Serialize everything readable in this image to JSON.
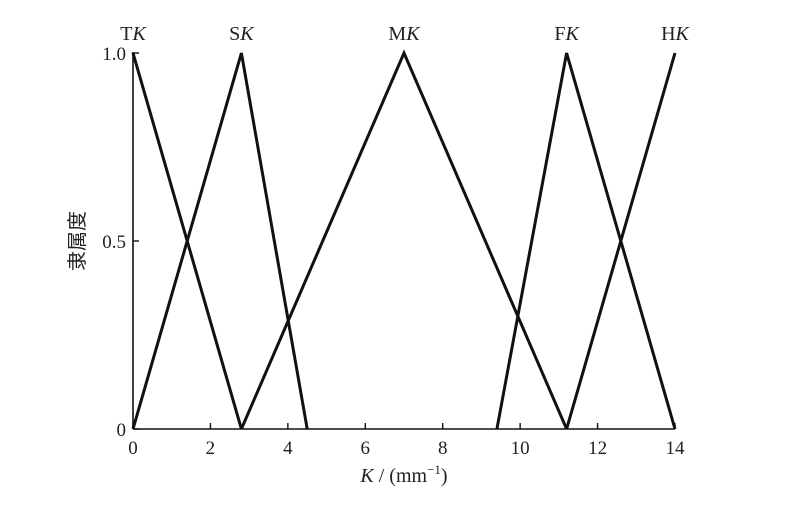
{
  "chart_data": {
    "type": "line",
    "title": "",
    "xlabel": {
      "pre": "K",
      "mid": " / (mm",
      "sup": "−1",
      "post": ")"
    },
    "ylabel": "隶属度",
    "xlim": [
      0,
      14
    ],
    "ylim": [
      0,
      1
    ],
    "x_ticks": [
      0,
      2,
      4,
      6,
      8,
      10,
      12,
      14
    ],
    "x_tick_labels": [
      "0",
      "2",
      "4",
      "6",
      "8",
      "10",
      "12",
      "14"
    ],
    "y_ticks": [
      0,
      0.5,
      1.0
    ],
    "y_tick_labels": [
      "0",
      "0.5",
      "1.0"
    ],
    "grid": false,
    "line_color": "#111111",
    "series": [
      {
        "name": "TK",
        "prefix": "T",
        "italic": "K",
        "x": [
          0,
          2.8
        ],
        "y": [
          1,
          0
        ]
      },
      {
        "name": "SK",
        "prefix": "S",
        "italic": "K",
        "x": [
          0,
          2.8,
          4.5
        ],
        "y": [
          0,
          1,
          0
        ]
      },
      {
        "name": "MK",
        "prefix": "M",
        "italic": "K",
        "x": [
          2.8,
          7.0,
          11.2
        ],
        "y": [
          0,
          1,
          0
        ]
      },
      {
        "name": "FK",
        "prefix": "F",
        "italic": "K",
        "x": [
          9.4,
          11.2,
          14
        ],
        "y": [
          0,
          1,
          0
        ]
      },
      {
        "name": "HK",
        "prefix": "H",
        "italic": "K",
        "x": [
          11.2,
          14
        ],
        "y": [
          0,
          1
        ]
      }
    ]
  }
}
